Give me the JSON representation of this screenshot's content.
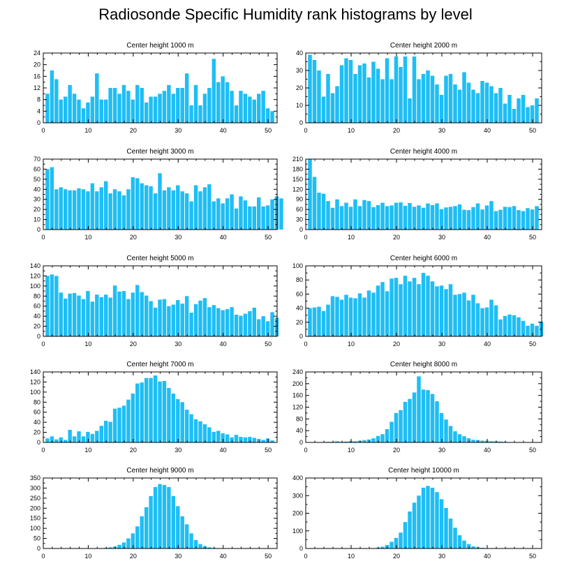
{
  "page": {
    "title": "Radiosonde Specific Humidity rank histograms by level"
  },
  "colors": {
    "bar": "#1EBEF5",
    "bar_edge": "#ffffff",
    "axis": "#000000"
  },
  "chart_data": [
    {
      "type": "bar",
      "title": "Center height 1000 m",
      "xlim": [
        0,
        52
      ],
      "ylim": [
        0,
        24
      ],
      "xticks": [
        0,
        10,
        20,
        30,
        40,
        50
      ],
      "yticks": [
        0,
        4,
        8,
        12,
        16,
        20,
        24
      ],
      "values": [
        10,
        18,
        15,
        8,
        9,
        13,
        10,
        8,
        5,
        7,
        9,
        17,
        8,
        8,
        12,
        12,
        10,
        13,
        11,
        8,
        13,
        12,
        7,
        9,
        9,
        10,
        11,
        13,
        10,
        12,
        12,
        17,
        6,
        13,
        6,
        10,
        12,
        22,
        14,
        16,
        14,
        11,
        6,
        11,
        10,
        9,
        8,
        10,
        11,
        5,
        4
      ]
    },
    {
      "type": "bar",
      "title": "Center height 2000 m",
      "xlim": [
        0,
        52
      ],
      "ylim": [
        0,
        40
      ],
      "xticks": [
        0,
        10,
        20,
        30,
        40,
        50
      ],
      "yticks": [
        0,
        10,
        20,
        30,
        40
      ],
      "values": [
        39,
        36,
        30,
        15,
        28,
        17,
        21,
        33,
        37,
        36,
        28,
        33,
        34,
        26,
        35,
        31,
        25,
        37,
        25,
        38,
        32,
        38,
        14,
        38,
        25,
        28,
        30,
        27,
        22,
        16,
        27,
        28,
        22,
        19,
        29,
        23,
        19,
        17,
        24,
        23,
        21,
        17,
        20,
        11,
        16,
        8,
        14,
        16,
        9,
        10,
        14
      ]
    },
    {
      "type": "bar",
      "title": "Center height 3000 m",
      "xlim": [
        0,
        52
      ],
      "ylim": [
        0,
        70
      ],
      "xticks": [
        0,
        10,
        20,
        30,
        40,
        50
      ],
      "yticks": [
        0,
        10,
        20,
        30,
        40,
        50,
        60,
        70
      ],
      "values": [
        60,
        62,
        40,
        42,
        40,
        39,
        39,
        41,
        40,
        38,
        46,
        38,
        42,
        48,
        36,
        40,
        38,
        34,
        40,
        52,
        51,
        46,
        44,
        43,
        36,
        56,
        39,
        42,
        39,
        44,
        38,
        36,
        28,
        44,
        38,
        42,
        45,
        28,
        31,
        26,
        31,
        35,
        21,
        33,
        29,
        23,
        23,
        32,
        23,
        24,
        30,
        33,
        31
      ]
    },
    {
      "type": "bar",
      "title": "Center height 4000 m",
      "xlim": [
        0,
        52
      ],
      "ylim": [
        0,
        210
      ],
      "xticks": [
        0,
        10,
        20,
        30,
        40,
        50
      ],
      "yticks": [
        0,
        30,
        60,
        90,
        120,
        150,
        180,
        210
      ],
      "values": [
        210,
        157,
        110,
        107,
        85,
        65,
        90,
        70,
        80,
        68,
        90,
        70,
        88,
        85,
        67,
        73,
        80,
        70,
        72,
        80,
        81,
        71,
        79,
        68,
        72,
        65,
        78,
        73,
        78,
        61,
        66,
        68,
        70,
        75,
        59,
        58,
        67,
        78,
        60,
        72,
        85,
        55,
        59,
        68,
        67,
        70,
        58,
        55,
        64,
        60,
        70
      ]
    },
    {
      "type": "bar",
      "title": "Center height 5000 m",
      "xlim": [
        0,
        52
      ],
      "ylim": [
        0,
        140
      ],
      "xticks": [
        0,
        10,
        20,
        30,
        40,
        50
      ],
      "yticks": [
        0,
        20,
        40,
        60,
        80,
        100,
        120,
        140
      ],
      "values": [
        120,
        123,
        120,
        87,
        75,
        85,
        86,
        81,
        74,
        90,
        69,
        83,
        78,
        83,
        77,
        101,
        89,
        90,
        74,
        87,
        102,
        88,
        81,
        70,
        57,
        73,
        74,
        60,
        63,
        72,
        65,
        80,
        47,
        64,
        71,
        76,
        58,
        62,
        56,
        52,
        54,
        58,
        43,
        41,
        45,
        50,
        57,
        34,
        40,
        30,
        48,
        37
      ]
    },
    {
      "type": "bar",
      "title": "Center height 6000 m",
      "xlim": [
        0,
        52
      ],
      "ylim": [
        0,
        100
      ],
      "xticks": [
        0,
        10,
        20,
        30,
        40,
        50
      ],
      "yticks": [
        0,
        20,
        40,
        60,
        80,
        100
      ],
      "values": [
        40,
        41,
        42,
        36,
        45,
        57,
        56,
        52,
        59,
        55,
        54,
        61,
        55,
        65,
        62,
        72,
        77,
        64,
        82,
        83,
        74,
        86,
        78,
        83,
        74,
        90,
        86,
        78,
        71,
        72,
        67,
        74,
        59,
        60,
        62,
        51,
        59,
        47,
        40,
        41,
        52,
        44,
        24,
        29,
        31,
        30,
        27,
        22,
        15,
        18,
        15,
        21
      ]
    },
    {
      "type": "bar",
      "title": "Center height 7000 m",
      "xlim": [
        0,
        52
      ],
      "ylim": [
        0,
        140
      ],
      "xticks": [
        0,
        10,
        20,
        30,
        40,
        50
      ],
      "yticks": [
        0,
        20,
        40,
        60,
        80,
        100,
        120,
        140
      ],
      "values": [
        8,
        12,
        6,
        10,
        5,
        25,
        12,
        22,
        12,
        21,
        17,
        23,
        33,
        43,
        41,
        67,
        69,
        73,
        85,
        97,
        117,
        119,
        128,
        128,
        133,
        121,
        122,
        108,
        97,
        86,
        80,
        65,
        56,
        46,
        42,
        36,
        30,
        21,
        23,
        18,
        16,
        10,
        15,
        11,
        10,
        11,
        9,
        7,
        5,
        8,
        4
      ]
    },
    {
      "type": "bar",
      "title": "Center height 8000 m",
      "xlim": [
        0,
        52
      ],
      "ylim": [
        0,
        240
      ],
      "xticks": [
        0,
        10,
        20,
        30,
        40,
        50
      ],
      "yticks": [
        0,
        40,
        80,
        120,
        160,
        200,
        240
      ],
      "values": [
        0,
        0,
        0,
        0,
        2,
        2,
        4,
        2,
        3,
        5,
        4,
        6,
        8,
        10,
        14,
        22,
        28,
        45,
        70,
        100,
        110,
        138,
        148,
        170,
        225,
        180,
        178,
        165,
        140,
        100,
        78,
        56,
        38,
        28,
        21,
        14,
        9,
        8,
        6,
        6,
        4,
        4,
        3,
        2,
        1,
        1,
        1,
        1,
        0,
        1,
        0
      ]
    },
    {
      "type": "bar",
      "title": "Center height 9000 m",
      "xlim": [
        0,
        52
      ],
      "ylim": [
        0,
        350
      ],
      "xticks": [
        0,
        10,
        20,
        30,
        40,
        50
      ],
      "yticks": [
        0,
        50,
        100,
        150,
        200,
        250,
        300,
        350
      ],
      "values": [
        0,
        0,
        0,
        0,
        0,
        0,
        1,
        0,
        1,
        0,
        1,
        1,
        2,
        3,
        6,
        10,
        18,
        30,
        50,
        75,
        110,
        160,
        205,
        260,
        305,
        320,
        315,
        305,
        260,
        210,
        160,
        120,
        75,
        42,
        22,
        12,
        6,
        3,
        2,
        1,
        1,
        1,
        0,
        1,
        0,
        0,
        0,
        0,
        0,
        0,
        0
      ]
    },
    {
      "type": "bar",
      "title": "Center height 10000 m",
      "xlim": [
        0,
        52
      ],
      "ylim": [
        0,
        400
      ],
      "xticks": [
        0,
        10,
        20,
        30,
        40,
        50
      ],
      "yticks": [
        0,
        100,
        200,
        300,
        400
      ],
      "values": [
        0,
        0,
        0,
        0,
        0,
        0,
        0,
        0,
        0,
        0,
        0,
        0,
        1,
        1,
        2,
        5,
        10,
        20,
        38,
        60,
        90,
        150,
        210,
        260,
        300,
        345,
        355,
        345,
        320,
        280,
        230,
        170,
        118,
        75,
        45,
        25,
        12,
        7,
        4,
        2,
        2,
        1,
        1,
        0,
        0,
        0,
        0,
        0,
        0,
        0,
        0
      ]
    }
  ]
}
